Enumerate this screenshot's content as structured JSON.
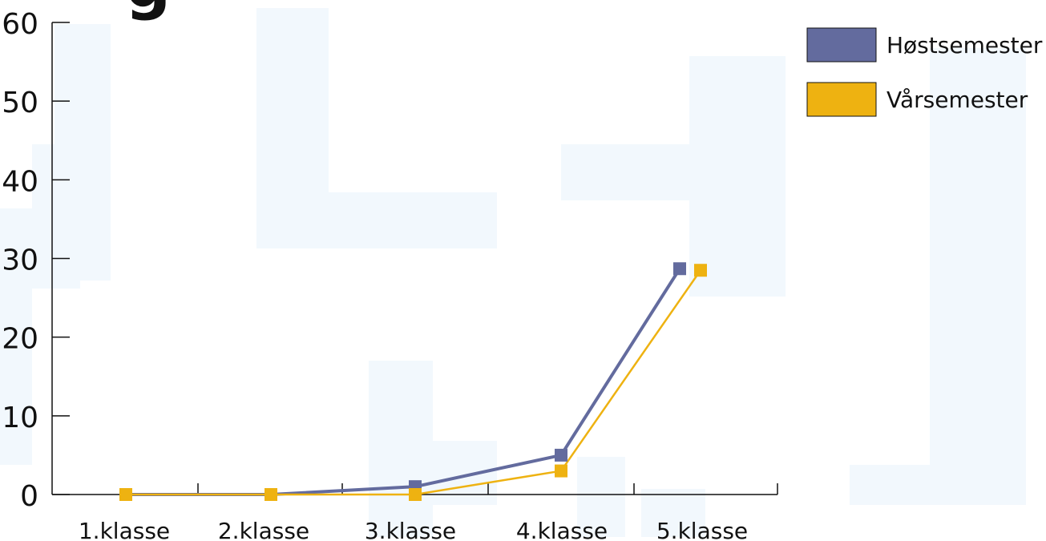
{
  "chart_data": {
    "type": "line",
    "title": "",
    "xlabel": "",
    "ylabel": "",
    "categories": [
      "1.klasse",
      "2.klasse",
      "3.klasse",
      "4.klasse",
      "5.klasse"
    ],
    "yticks": [
      "0",
      "10",
      "20",
      "30",
      "40",
      "50",
      "60"
    ],
    "ylim": [
      0,
      60
    ],
    "grid": false,
    "legend_position": "top-right",
    "series": [
      {
        "name": "Høstsemester",
        "color": "#636b9e",
        "values": [
          0,
          0,
          1,
          5,
          28.7
        ]
      },
      {
        "name": "Vårsemester",
        "color": "#eeb211",
        "values": [
          0,
          0,
          0,
          3,
          28.5
        ]
      }
    ]
  }
}
